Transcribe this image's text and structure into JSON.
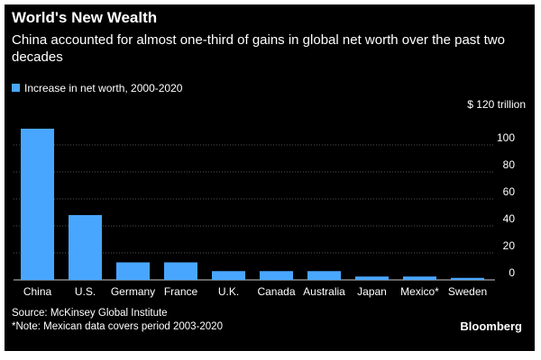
{
  "brand": "Bloomberg",
  "source": "Source: McKinsey Global Institute",
  "note": "*Note: Mexican data covers period 2003-2020",
  "colors": {
    "bar": "#49a6ff",
    "background": "#000000",
    "text": "#ffffff",
    "grid": "#555555"
  },
  "chart_data": {
    "type": "bar",
    "title": "World's New Wealth",
    "subtitle": "China accounted for almost one-third of gains in global net worth over the past two decades",
    "legend": "Increase in net worth, 2000-2020",
    "ylabel": "$ 120 trillion",
    "ylim": [
      0,
      120
    ],
    "yticks": [
      "100",
      "80",
      "60",
      "40",
      "20",
      "0"
    ],
    "ytick_values": [
      100,
      80,
      60,
      40,
      20,
      0
    ],
    "categories": [
      "China",
      "U.S.",
      "Germany",
      "France",
      "U.K.",
      "Canada",
      "Australia",
      "Japan",
      "Mexico*",
      "Sweden"
    ],
    "values": [
      112,
      48,
      13,
      13,
      6.5,
      6.5,
      6.5,
      2.5,
      2.5,
      1.5
    ],
    "axis_side": "right"
  }
}
